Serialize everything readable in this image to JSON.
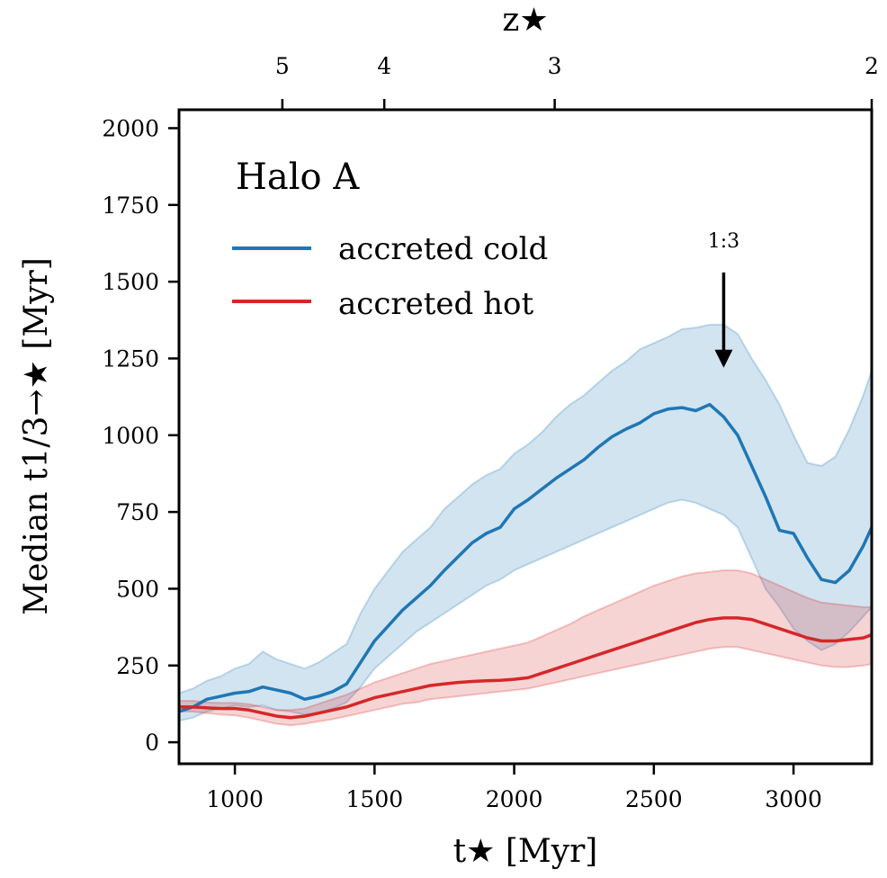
{
  "chart_data": {
    "type": "line",
    "title": "Halo A",
    "xlabel": "t★ [Myr]",
    "ylabel": "Median t1/3→★ [Myr]",
    "top_xlabel": "z★",
    "xlim": [
      800,
      3280
    ],
    "ylim": [
      -70,
      2060
    ],
    "x_ticks": [
      1000,
      1500,
      2000,
      2500,
      3000
    ],
    "y_ticks": [
      0,
      250,
      500,
      750,
      1000,
      1250,
      1500,
      1750,
      2000
    ],
    "top_ticks": [
      {
        "label": "5",
        "t": 1170
      },
      {
        "label": "4",
        "t": 1535
      },
      {
        "label": "3",
        "t": 2145
      },
      {
        "label": "2",
        "t": 3280
      }
    ],
    "legend": [
      "accreted cold",
      "accreted hot"
    ],
    "annotation": {
      "text": "1:3",
      "x": 2750,
      "y_arrow_start": 1530,
      "y_arrow_end": 1220
    },
    "series": [
      {
        "name": "accreted cold",
        "color": "#1f77b4",
        "x": [
          800,
          850,
          900,
          950,
          1000,
          1050,
          1100,
          1150,
          1200,
          1250,
          1300,
          1350,
          1400,
          1450,
          1500,
          1550,
          1600,
          1650,
          1700,
          1750,
          1800,
          1850,
          1900,
          1950,
          2000,
          2050,
          2100,
          2150,
          2200,
          2250,
          2300,
          2350,
          2400,
          2450,
          2500,
          2550,
          2600,
          2650,
          2700,
          2750,
          2800,
          2850,
          2900,
          2950,
          3000,
          3050,
          3100,
          3150,
          3200,
          3250,
          3280
        ],
        "y": [
          100,
          115,
          140,
          150,
          160,
          165,
          180,
          170,
          160,
          140,
          150,
          165,
          190,
          260,
          330,
          380,
          430,
          470,
          510,
          560,
          605,
          650,
          680,
          700,
          760,
          790,
          825,
          860,
          890,
          920,
          960,
          995,
          1020,
          1040,
          1070,
          1085,
          1090,
          1080,
          1100,
          1060,
          1000,
          900,
          800,
          690,
          680,
          600,
          530,
          520,
          560,
          640,
          700
        ],
        "lower": [
          70,
          80,
          100,
          110,
          120,
          115,
          120,
          105,
          100,
          90,
          95,
          110,
          130,
          180,
          240,
          280,
          320,
          360,
          390,
          420,
          450,
          480,
          510,
          530,
          560,
          580,
          600,
          620,
          640,
          660,
          680,
          700,
          720,
          740,
          760,
          780,
          790,
          780,
          760,
          740,
          700,
          600,
          500,
          440,
          370,
          330,
          300,
          320,
          360,
          410,
          440
        ],
        "upper": [
          160,
          175,
          200,
          215,
          240,
          255,
          295,
          270,
          255,
          240,
          260,
          290,
          320,
          420,
          500,
          560,
          620,
          660,
          700,
          760,
          800,
          840,
          870,
          890,
          940,
          970,
          1010,
          1060,
          1100,
          1130,
          1170,
          1210,
          1240,
          1280,
          1300,
          1320,
          1345,
          1350,
          1360,
          1360,
          1330,
          1250,
          1180,
          1100,
          1000,
          910,
          900,
          930,
          1020,
          1130,
          1210
        ]
      },
      {
        "name": "accreted hot",
        "color": "#d62728",
        "x": [
          800,
          850,
          900,
          950,
          1000,
          1050,
          1100,
          1150,
          1200,
          1250,
          1300,
          1350,
          1400,
          1450,
          1500,
          1550,
          1600,
          1650,
          1700,
          1750,
          1800,
          1850,
          1900,
          1950,
          2000,
          2050,
          2100,
          2150,
          2200,
          2250,
          2300,
          2350,
          2400,
          2450,
          2500,
          2550,
          2600,
          2650,
          2700,
          2750,
          2800,
          2850,
          2900,
          2950,
          3000,
          3050,
          3100,
          3150,
          3200,
          3250,
          3280
        ],
        "y": [
          115,
          115,
          112,
          110,
          110,
          105,
          95,
          85,
          80,
          85,
          95,
          105,
          115,
          130,
          145,
          155,
          165,
          175,
          185,
          190,
          195,
          198,
          200,
          202,
          205,
          210,
          225,
          240,
          255,
          270,
          285,
          300,
          315,
          330,
          345,
          360,
          375,
          390,
          400,
          405,
          405,
          400,
          385,
          370,
          355,
          340,
          330,
          330,
          335,
          340,
          350
        ],
        "lower": [
          100,
          100,
          95,
          90,
          88,
          80,
          70,
          60,
          55,
          60,
          68,
          75,
          85,
          95,
          105,
          115,
          125,
          130,
          140,
          145,
          150,
          155,
          160,
          165,
          170,
          175,
          185,
          195,
          205,
          215,
          225,
          235,
          245,
          255,
          265,
          275,
          285,
          295,
          305,
          310,
          310,
          300,
          290,
          280,
          270,
          260,
          250,
          245,
          245,
          250,
          255
        ],
        "upper": [
          135,
          135,
          130,
          128,
          128,
          124,
          115,
          105,
          105,
          110,
          125,
          140,
          155,
          175,
          195,
          210,
          225,
          240,
          255,
          265,
          275,
          285,
          295,
          305,
          315,
          325,
          345,
          365,
          385,
          410,
          430,
          450,
          470,
          490,
          510,
          525,
          540,
          550,
          555,
          560,
          560,
          550,
          530,
          510,
          490,
          470,
          455,
          450,
          445,
          440,
          440
        ]
      }
    ]
  }
}
